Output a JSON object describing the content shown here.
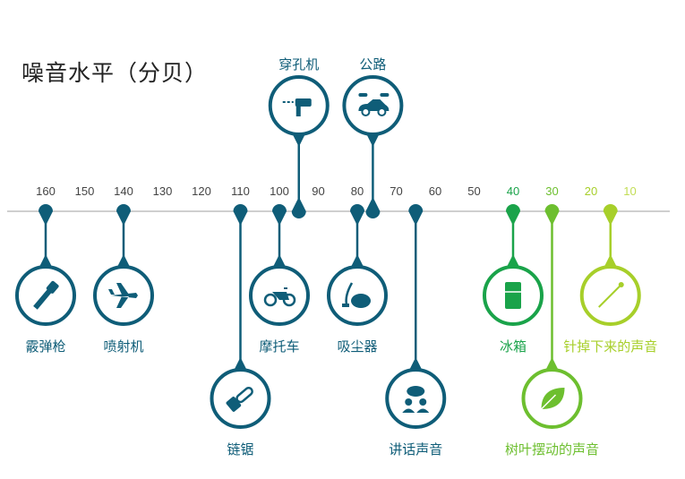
{
  "title": "噪音水平（分贝）",
  "colors": {
    "dark": "#0f5d78",
    "axis": "#cfcfcf",
    "tick": "#444444",
    "green40": "#1aa34a",
    "green30": "#6dbf2f",
    "green20": "#a7cf2a",
    "green10": "#c2dd55"
  },
  "ticks": [
    {
      "value": 160,
      "label": "160",
      "color": "#444444"
    },
    {
      "value": 150,
      "label": "150",
      "color": "#444444"
    },
    {
      "value": 140,
      "label": "140",
      "color": "#444444"
    },
    {
      "value": 130,
      "label": "130",
      "color": "#444444"
    },
    {
      "value": 120,
      "label": "120",
      "color": "#444444"
    },
    {
      "value": 110,
      "label": "110",
      "color": "#444444"
    },
    {
      "value": 100,
      "label": "100",
      "color": "#444444"
    },
    {
      "value": 90,
      "label": "90",
      "color": "#444444"
    },
    {
      "value": 80,
      "label": "80",
      "color": "#444444"
    },
    {
      "value": 70,
      "label": "70",
      "color": "#444444"
    },
    {
      "value": 60,
      "label": "60",
      "color": "#444444"
    },
    {
      "value": 50,
      "label": "50",
      "color": "#444444"
    },
    {
      "value": 40,
      "label": "40",
      "color": "#1aa34a"
    },
    {
      "value": 30,
      "label": "30",
      "color": "#6dbf2f"
    },
    {
      "value": 20,
      "label": "20",
      "color": "#a7cf2a"
    },
    {
      "value": 10,
      "label": "10",
      "color": "#c2dd55"
    }
  ],
  "sources": [
    {
      "label": "霰弹枪",
      "value": 160,
      "position": "below",
      "depth": 1,
      "icon": "shotgun-icon",
      "color": "#0f5d78"
    },
    {
      "label": "喷射机",
      "value": 140,
      "position": "below",
      "depth": 1,
      "icon": "jet-icon",
      "color": "#0f5d78"
    },
    {
      "label": "链锯",
      "value": 110,
      "position": "below",
      "depth": 2,
      "icon": "chainsaw-icon",
      "color": "#0f5d78"
    },
    {
      "label": "摩托车",
      "value": 100,
      "position": "below",
      "depth": 1,
      "icon": "motorcycle-icon",
      "color": "#0f5d78"
    },
    {
      "label": "穿孔机",
      "value": 95,
      "position": "above",
      "depth": 1,
      "icon": "drill-icon",
      "color": "#0f5d78"
    },
    {
      "label": "吸尘器",
      "value": 80,
      "position": "below",
      "depth": 1,
      "icon": "vacuum-icon",
      "color": "#0f5d78"
    },
    {
      "label": "公路",
      "value": 76,
      "position": "above",
      "depth": 1,
      "icon": "cars-icon",
      "color": "#0f5d78"
    },
    {
      "label": "讲话声音",
      "value": 65,
      "position": "below",
      "depth": 2,
      "icon": "speech-icon",
      "color": "#0f5d78"
    },
    {
      "label": "冰箱",
      "value": 40,
      "position": "below",
      "depth": 1,
      "icon": "fridge-icon",
      "color": "#1aa34a"
    },
    {
      "label": "树叶摆动的声音",
      "value": 30,
      "position": "below",
      "depth": 2,
      "icon": "leaf-icon",
      "color": "#6dbf2f"
    },
    {
      "label": "针掉下来的声音",
      "value": 15,
      "position": "below",
      "depth": 1,
      "icon": "pin-icon",
      "color": "#a7cf2a"
    }
  ]
}
